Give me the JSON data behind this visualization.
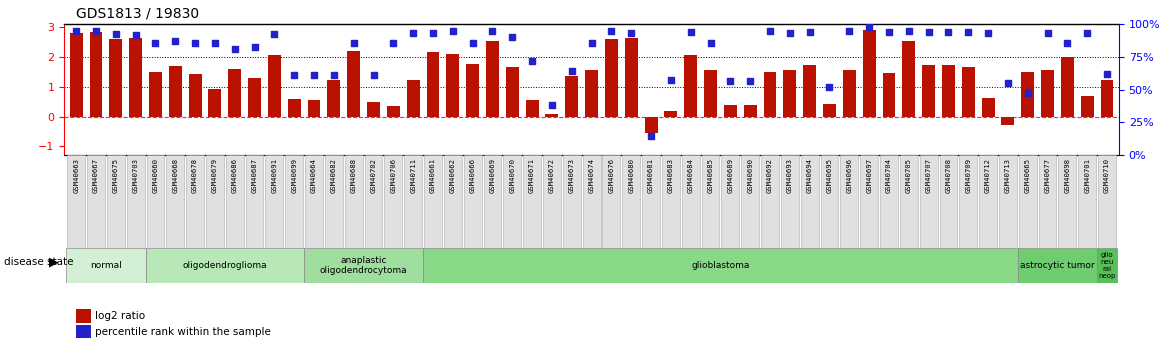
{
  "title": "GDS1813 / 19830",
  "samples": [
    "GSM40663",
    "GSM40667",
    "GSM40675",
    "GSM40703",
    "GSM40660",
    "GSM40668",
    "GSM40678",
    "GSM40679",
    "GSM40686",
    "GSM40687",
    "GSM40691",
    "GSM40699",
    "GSM40664",
    "GSM40682",
    "GSM40688",
    "GSM40702",
    "GSM40706",
    "GSM40711",
    "GSM40661",
    "GSM40662",
    "GSM40666",
    "GSM40669",
    "GSM40670",
    "GSM40671",
    "GSM40672",
    "GSM40673",
    "GSM40674",
    "GSM40676",
    "GSM40680",
    "GSM40681",
    "GSM40683",
    "GSM40684",
    "GSM40685",
    "GSM40689",
    "GSM40690",
    "GSM40692",
    "GSM40693",
    "GSM40694",
    "GSM40695",
    "GSM40696",
    "GSM40697",
    "GSM40704",
    "GSM40705",
    "GSM40707",
    "GSM40708",
    "GSM40709",
    "GSM40712",
    "GSM40713",
    "GSM40665",
    "GSM40677",
    "GSM40698",
    "GSM40701",
    "GSM40710"
  ],
  "log2_ratio": [
    2.8,
    2.85,
    2.6,
    2.65,
    1.5,
    1.68,
    1.42,
    0.92,
    1.58,
    1.3,
    2.05,
    0.6,
    0.57,
    1.23,
    2.2,
    0.5,
    0.35,
    1.23,
    2.18,
    2.1,
    1.75,
    2.55,
    1.65,
    0.55,
    0.08,
    1.35,
    1.55,
    2.6,
    2.65,
    -0.55,
    0.18,
    2.05,
    1.55,
    0.4,
    0.4,
    1.48,
    1.55,
    1.72,
    0.42,
    1.55,
    2.9,
    1.45,
    2.55,
    1.72,
    1.72,
    1.65,
    0.62,
    -0.28,
    1.5,
    1.55,
    2.0,
    0.68,
    1.22
  ],
  "percentile_pct": [
    97,
    97,
    94,
    93,
    87,
    88,
    87,
    87,
    82,
    83,
    94,
    60,
    60,
    60,
    87,
    60,
    87,
    95,
    95,
    97,
    87,
    97,
    92,
    72,
    35,
    63,
    87,
    97,
    95,
    9,
    56,
    96,
    87,
    55,
    55,
    97,
    95,
    96,
    50,
    97,
    100,
    96,
    97,
    96,
    96,
    96,
    95,
    53,
    45,
    95,
    87,
    95,
    61
  ],
  "disease_groups": [
    {
      "label": "normal",
      "start": 0,
      "end": 3,
      "color": "#d4f0d4"
    },
    {
      "label": "oligodendroglioma",
      "start": 4,
      "end": 11,
      "color": "#b8e8b8"
    },
    {
      "label": "anaplastic\noligodendrocytoma",
      "start": 12,
      "end": 17,
      "color": "#a0dea0"
    },
    {
      "label": "glioblastoma",
      "start": 18,
      "end": 47,
      "color": "#88d888"
    },
    {
      "label": "astrocytic tumor",
      "start": 48,
      "end": 51,
      "color": "#70cc70"
    },
    {
      "label": "glio\nneu\nral\nneop",
      "start": 52,
      "end": 52,
      "color": "#58c058"
    }
  ],
  "bar_color": "#bb1100",
  "dot_color": "#2222cc",
  "ylim_left": [
    -1.3,
    3.1
  ],
  "left_yticks": [
    -1,
    0,
    1,
    2,
    3
  ],
  "right_yticks": [
    0,
    25,
    50,
    75,
    100
  ],
  "background_color": "#ffffff"
}
